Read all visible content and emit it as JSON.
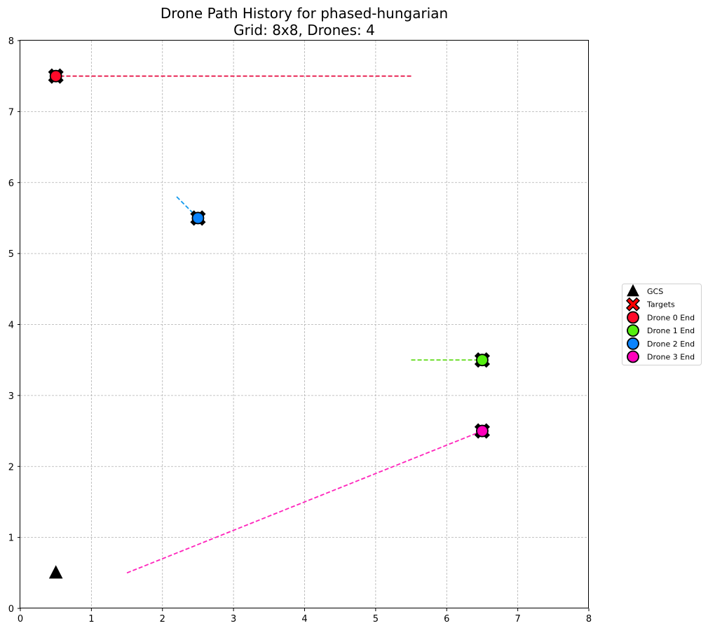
{
  "chart_data": {
    "type": "line",
    "title": "Drone Path History for phased-hungarian",
    "subtitle": "Grid: 8x8, Drones: 4",
    "xlabel": "",
    "ylabel": "",
    "xlim": [
      0,
      8
    ],
    "ylim": [
      0,
      8
    ],
    "x_ticks": [
      "0",
      "1",
      "2",
      "3",
      "4",
      "5",
      "6",
      "7",
      "8"
    ],
    "y_ticks": [
      "0",
      "1",
      "2",
      "3",
      "4",
      "5",
      "6",
      "7",
      "8"
    ],
    "grid": true,
    "legend_position": "right",
    "gcs": {
      "name": "GCS",
      "x": 0.5,
      "y": 0.5,
      "color": "#000000"
    },
    "targets": {
      "name": "Targets",
      "color": "#ff0000",
      "points": [
        {
          "x": 0.5,
          "y": 7.5
        },
        {
          "x": 2.5,
          "y": 5.5
        },
        {
          "x": 6.5,
          "y": 3.5
        },
        {
          "x": 6.5,
          "y": 2.5
        }
      ]
    },
    "series": [
      {
        "name": "Drone 0 End",
        "color": "#ff0a2a",
        "path_color": "#e6194b",
        "path": [
          {
            "x": 5.5,
            "y": 7.5
          },
          {
            "x": 0.5,
            "y": 7.5
          }
        ]
      },
      {
        "name": "Drone 1 End",
        "color": "#55ee11",
        "path_color": "#66dd22",
        "path": [
          {
            "x": 5.5,
            "y": 3.5
          },
          {
            "x": 6.5,
            "y": 3.5
          }
        ]
      },
      {
        "name": "Drone 2 End",
        "color": "#0a84ff",
        "path_color": "#1199ee",
        "path": [
          {
            "x": 2.2,
            "y": 5.8
          },
          {
            "x": 2.5,
            "y": 5.5
          }
        ]
      },
      {
        "name": "Drone 3 End",
        "color": "#ff00bb",
        "path_color": "#ff22bb",
        "path": [
          {
            "x": 1.5,
            "y": 0.5
          },
          {
            "x": 6.5,
            "y": 2.5
          }
        ]
      }
    ]
  }
}
